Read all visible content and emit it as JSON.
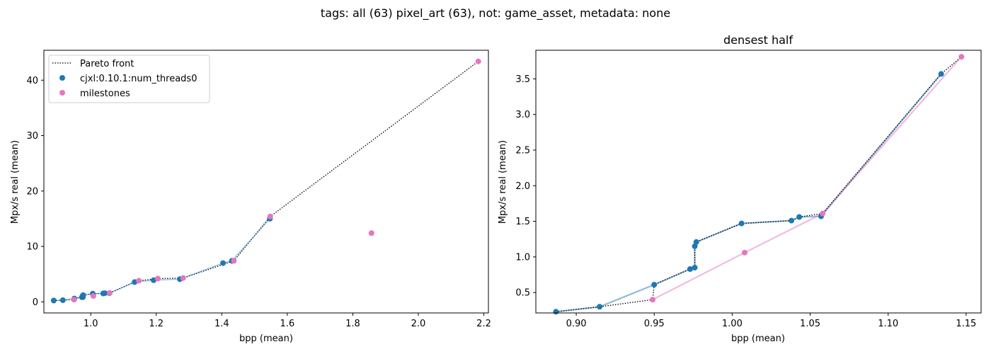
{
  "suptitle": "tags: all (63) pixel_art (63), not: game_asset, metadata: none",
  "colors": {
    "blue": "#1f77b4",
    "pink": "#e377c2",
    "front": "#000000"
  },
  "chart_data": [
    {
      "type": "line",
      "title": "",
      "xlabel": "bpp (mean)",
      "ylabel": "Mpx/s real (mean)",
      "xlim": [
        0.857,
        2.214
      ],
      "ylim": [
        -2.0,
        45.4
      ],
      "xticks": [
        1.0,
        1.2,
        1.4,
        1.6,
        1.8,
        2.0,
        2.2
      ],
      "xtick_labels": [
        "1.0",
        "1.2",
        "1.4",
        "1.6",
        "1.8",
        "2.0",
        "2.2"
      ],
      "yticks": [
        0,
        10,
        20,
        30,
        40
      ],
      "ytick_labels": [
        "0",
        "10",
        "20",
        "30",
        "40"
      ],
      "legend": {
        "placement": "upper-left",
        "entries": [
          "Pareto front",
          "cjxl:0.10.1:num_threads0",
          "milestones"
        ]
      },
      "series": [
        {
          "name": "cjxl:0.10.1:num_threads0",
          "color": "#1f77b4",
          "x": [
            0.887,
            0.915,
            0.95,
            0.973,
            0.976,
            0.976,
            0.977,
            1.006,
            1.038,
            1.043,
            1.057,
            1.134,
            1.192,
            1.272,
            1.404,
            1.431,
            1.547
          ],
          "y": [
            0.23,
            0.3,
            0.61,
            0.83,
            0.85,
            1.15,
            1.21,
            1.47,
            1.51,
            1.56,
            1.57,
            3.57,
            3.9,
            4.1,
            7.0,
            7.4,
            15.0
          ]
        },
        {
          "name": "milestones",
          "color": "#e377c2",
          "x": [
            0.949,
            1.008,
            1.058,
            1.147,
            1.205,
            1.282,
            1.437,
            1.548,
            1.857,
            2.183
          ],
          "y": [
            0.4,
            1.06,
            1.61,
            3.81,
            4.2,
            4.3,
            7.4,
            15.4,
            12.4,
            43.4
          ]
        }
      ],
      "pareto_front": {
        "name": "Pareto front",
        "x": [
          0.887,
          0.915,
          0.949,
          0.95,
          0.973,
          0.976,
          0.976,
          0.977,
          1.006,
          1.038,
          1.043,
          1.058,
          1.134,
          1.147,
          1.205,
          1.282,
          1.437,
          1.548,
          2.183
        ],
        "y": [
          0.23,
          0.3,
          0.4,
          0.61,
          0.83,
          0.85,
          1.15,
          1.21,
          1.47,
          1.51,
          1.56,
          1.61,
          3.57,
          3.81,
          4.2,
          4.3,
          7.4,
          15.4,
          43.4
        ]
      }
    },
    {
      "type": "line",
      "title": "densest half",
      "xlabel": "bpp (mean)",
      "ylabel": "Mpx/s real (mean)",
      "xlim": [
        0.8741,
        1.1596
      ],
      "ylim": [
        0.2134,
        3.9016
      ],
      "xticks": [
        0.9,
        0.95,
        1.0,
        1.05,
        1.1,
        1.15
      ],
      "xtick_labels": [
        "0.90",
        "0.95",
        "1.00",
        "1.05",
        "1.10",
        "1.15"
      ],
      "yticks": [
        0.5,
        1.0,
        1.5,
        2.0,
        2.5,
        3.0,
        3.5
      ],
      "ytick_labels": [
        "0.5",
        "1.0",
        "1.5",
        "2.0",
        "2.5",
        "3.0",
        "3.5"
      ],
      "series": [
        {
          "name": "cjxl:0.10.1:num_threads0",
          "color": "#1f77b4",
          "x": [
            0.887,
            0.915,
            0.95,
            0.973,
            0.976,
            0.976,
            0.977,
            1.006,
            1.038,
            1.043,
            1.057,
            1.134
          ],
          "y": [
            0.23,
            0.3,
            0.61,
            0.83,
            0.85,
            1.15,
            1.21,
            1.47,
            1.51,
            1.56,
            1.57,
            3.57
          ]
        },
        {
          "name": "milestones",
          "color": "#e377c2",
          "x": [
            0.949,
            1.008,
            1.058,
            1.147
          ],
          "y": [
            0.4,
            1.06,
            1.61,
            3.81
          ]
        }
      ],
      "pareto_front": {
        "name": "Pareto front",
        "x": [
          0.887,
          0.915,
          0.949,
          0.95,
          0.973,
          0.976,
          0.976,
          0.977,
          1.006,
          1.038,
          1.043,
          1.058,
          1.134,
          1.147
        ],
        "y": [
          0.23,
          0.3,
          0.4,
          0.61,
          0.83,
          0.85,
          1.15,
          1.21,
          1.47,
          1.51,
          1.56,
          1.61,
          3.57,
          3.81
        ]
      }
    }
  ]
}
